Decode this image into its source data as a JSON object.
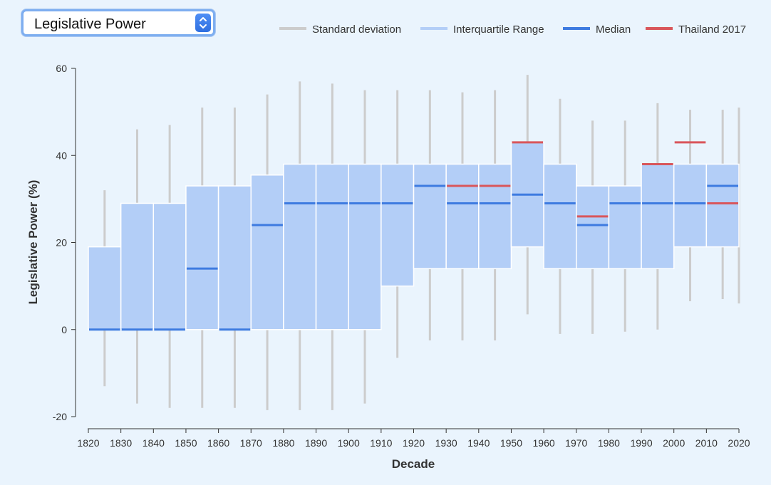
{
  "selector": {
    "value": "Legislative Power"
  },
  "colors": {
    "background": "#eaf4fd",
    "sd": "#cccccc",
    "iqr": "#b3cef7",
    "median": "#3e7be0",
    "country": "#d9565b"
  },
  "legend": [
    {
      "key": "sd",
      "label": "Standard deviation"
    },
    {
      "key": "iqr",
      "label": "Interquartile Range"
    },
    {
      "key": "median",
      "label": "Median"
    },
    {
      "key": "country",
      "label": "Thailand 2017"
    }
  ],
  "chart_data": {
    "type": "boxplot",
    "xlabel": "Decade",
    "ylabel": "Legislative Power (%)",
    "ylim": [
      -20,
      60
    ],
    "yticks": [
      -20,
      0,
      20,
      40,
      60
    ],
    "xticks": [
      1820,
      1830,
      1840,
      1850,
      1860,
      1870,
      1880,
      1890,
      1900,
      1910,
      1920,
      1930,
      1940,
      1950,
      1960,
      1970,
      1980,
      1990,
      2000,
      2010,
      2020
    ],
    "bins": [
      {
        "start": 1820,
        "sd_low": -13,
        "sd_high": 32,
        "q1": 0,
        "q3": 19,
        "median": 0,
        "country": null
      },
      {
        "start": 1830,
        "sd_low": -17,
        "sd_high": 46,
        "q1": 0,
        "q3": 29,
        "median": 0,
        "country": null
      },
      {
        "start": 1840,
        "sd_low": -18,
        "sd_high": 47,
        "q1": 0,
        "q3": 29,
        "median": 0,
        "country": null
      },
      {
        "start": 1850,
        "sd_low": -18,
        "sd_high": 51,
        "q1": 0,
        "q3": 33,
        "median": 14,
        "country": null
      },
      {
        "start": 1860,
        "sd_low": -18,
        "sd_high": 51,
        "q1": 0,
        "q3": 33,
        "median": 0,
        "country": null
      },
      {
        "start": 1870,
        "sd_low": -18.5,
        "sd_high": 54,
        "q1": 0,
        "q3": 35.5,
        "median": 24,
        "country": null
      },
      {
        "start": 1880,
        "sd_low": -18.5,
        "sd_high": 57,
        "q1": 0,
        "q3": 38,
        "median": 29,
        "country": null
      },
      {
        "start": 1890,
        "sd_low": -18.5,
        "sd_high": 56.5,
        "q1": 0,
        "q3": 38,
        "median": 29,
        "country": null
      },
      {
        "start": 1900,
        "sd_low": -17,
        "sd_high": 55,
        "q1": 0,
        "q3": 38,
        "median": 29,
        "country": null
      },
      {
        "start": 1910,
        "sd_low": -6.5,
        "sd_high": 55,
        "q1": 10,
        "q3": 38,
        "median": 29,
        "country": null
      },
      {
        "start": 1920,
        "sd_low": -2.5,
        "sd_high": 55,
        "q1": 14,
        "q3": 38,
        "median": 33,
        "country": null
      },
      {
        "start": 1930,
        "sd_low": -2.5,
        "sd_high": 54.5,
        "q1": 14,
        "q3": 38,
        "median": 29,
        "country": 33
      },
      {
        "start": 1940,
        "sd_low": -2.5,
        "sd_high": 55,
        "q1": 14,
        "q3": 38,
        "median": 29,
        "country": 33
      },
      {
        "start": 1950,
        "sd_low": 3.5,
        "sd_high": 58.5,
        "q1": 19,
        "q3": 43,
        "median": 31,
        "country": 43
      },
      {
        "start": 1960,
        "sd_low": -1,
        "sd_high": 53,
        "q1": 14,
        "q3": 38,
        "median": 29,
        "country": null
      },
      {
        "start": 1970,
        "sd_low": -1,
        "sd_high": 48,
        "q1": 14,
        "q3": 33,
        "median": 24,
        "country": 26
      },
      {
        "start": 1980,
        "sd_low": -0.5,
        "sd_high": 48,
        "q1": 14,
        "q3": 33,
        "median": 29,
        "country": null
      },
      {
        "start": 1990,
        "sd_low": 0,
        "sd_high": 52,
        "q1": 14,
        "q3": 38,
        "median": 29,
        "country": 38
      },
      {
        "start": 2000,
        "sd_low": 6.5,
        "sd_high": 50.5,
        "q1": 19,
        "q3": 38,
        "median": 29,
        "country": 43
      },
      {
        "start": 2010,
        "sd_low": 7,
        "sd_high": 50.5,
        "q1": 19,
        "q3": 38,
        "median": 33,
        "country": 29
      },
      {
        "start": 2020,
        "sd_low": 6,
        "sd_high": 51,
        "q1": null,
        "q3": null,
        "median": null,
        "country": null
      }
    ]
  }
}
